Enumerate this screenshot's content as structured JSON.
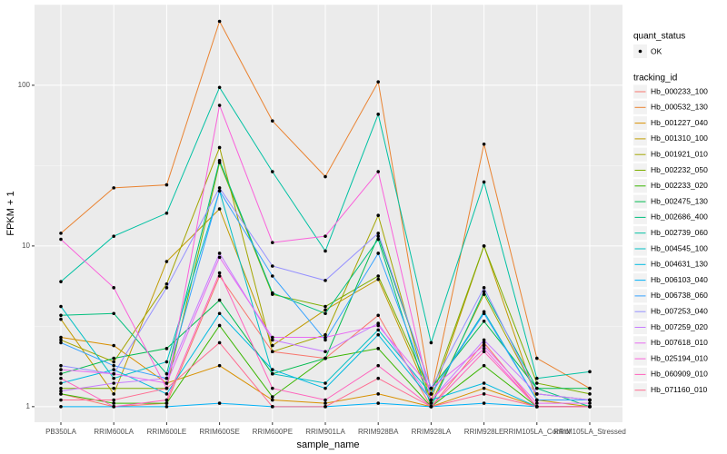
{
  "chart_data": {
    "type": "line",
    "log_scale": true,
    "grid": true,
    "x_label": "sample_name",
    "y_label": "FPKM + 1",
    "legend_shape_title": "quant_status",
    "legend_shape_label": "OK",
    "legend_title": "tracking_id",
    "point_color": "#000000",
    "categories": [
      "PB350LA",
      "RRIM600LA",
      "RRIM600LE",
      "RRIM600SE",
      "RRIM600PE",
      "RRIM901LA",
      "RRIM928BA",
      "RRIM928LA",
      "RRIM928LE",
      "RRIM105LA_Control",
      "RRIM105LA_Stressed"
    ],
    "ylim": [
      0.8,
      318
    ],
    "yticks": [
      1,
      10,
      100
    ],
    "series": [
      {
        "name": "Hb_000233_100",
        "color": "#F8766D",
        "values": [
          1.2,
          1.0,
          1.05,
          6.5,
          2.2,
          2.0,
          3.7,
          1.0,
          2.5,
          1.0,
          1.0
        ]
      },
      {
        "name": "Hb_000532_130",
        "color": "#EA8331",
        "values": [
          12,
          23,
          24,
          250,
          60,
          27,
          105,
          1.2,
          43,
          2.0,
          1.3
        ]
      },
      {
        "name": "Hb_001227_040",
        "color": "#D89000",
        "values": [
          2.7,
          2.4,
          1.4,
          1.8,
          1.1,
          1.05,
          1.2,
          1.0,
          1.3,
          1.0,
          1.0
        ]
      },
      {
        "name": "Hb_001310_100",
        "color": "#C09B00",
        "values": [
          3.5,
          1.2,
          8,
          17,
          2.4,
          4,
          6.2,
          1.1,
          10,
          1.1,
          1.0
        ]
      },
      {
        "name": "Hb_001921_010",
        "color": "#A3A500",
        "values": [
          2.6,
          1.9,
          5.8,
          41,
          2.2,
          2.8,
          15.5,
          1.05,
          5,
          1.2,
          1.1
        ]
      },
      {
        "name": "Hb_002232_050",
        "color": "#7CAE00",
        "values": [
          1.3,
          1.3,
          1.3,
          33,
          5,
          4.2,
          6.5,
          1.2,
          10,
          1.4,
          1.2
        ]
      },
      {
        "name": "Hb_002233_020",
        "color": "#39B600",
        "values": [
          1.2,
          1.05,
          1.05,
          3.2,
          1.15,
          2,
          2.3,
          1.0,
          1.8,
          1.0,
          1.0
        ]
      },
      {
        "name": "Hb_002475_130",
        "color": "#00BB4E",
        "values": [
          1.6,
          2.0,
          2.3,
          4.6,
          1.6,
          2.0,
          11.5,
          1.3,
          3.4,
          1.3,
          1.3
        ]
      },
      {
        "name": "Hb_002686_400",
        "color": "#00BF7D",
        "values": [
          3.7,
          3.8,
          1.6,
          34,
          5.1,
          3.8,
          11,
          1.0,
          5.2,
          1.3,
          1.0
        ]
      },
      {
        "name": "Hb_002739_060",
        "color": "#00C1A3",
        "values": [
          6,
          11.5,
          16,
          97,
          29,
          9.3,
          66,
          2.5,
          25,
          1.5,
          1.65
        ]
      },
      {
        "name": "Hb_004545_100",
        "color": "#00BFC4",
        "values": [
          4.2,
          1.5,
          1.9,
          22,
          1.6,
          1.4,
          3.0,
          1.2,
          3.9,
          1.1,
          1.1
        ]
      },
      {
        "name": "Hb_004631_130",
        "color": "#00BAE0",
        "values": [
          1.4,
          1.7,
          1.2,
          3.8,
          1.7,
          1.3,
          2.8,
          1.1,
          1.4,
          1.0,
          1.0
        ]
      },
      {
        "name": "Hb_006103_040",
        "color": "#00B0F6",
        "values": [
          1.0,
          1.0,
          1.0,
          1.05,
          1.0,
          1.0,
          1.05,
          1.0,
          1.05,
          1.0,
          1.0
        ]
      },
      {
        "name": "Hb_006738_060",
        "color": "#35A2FF",
        "values": [
          2.5,
          1.8,
          1.5,
          22,
          6.5,
          2.6,
          9,
          1.2,
          3.8,
          1.1,
          1.1
        ]
      },
      {
        "name": "Hb_007253_040",
        "color": "#9590FF",
        "values": [
          1.8,
          1.6,
          5.5,
          23,
          7.5,
          6.1,
          12,
          1.3,
          5.5,
          1.2,
          1.1
        ]
      },
      {
        "name": "Hb_007259_020",
        "color": "#C77CFF",
        "values": [
          1.25,
          1.4,
          1.5,
          9,
          2.6,
          2.2,
          3.3,
          1.1,
          2.6,
          1.2,
          1.1
        ]
      },
      {
        "name": "Hb_007618_010",
        "color": "#E76BF3",
        "values": [
          1.7,
          1.6,
          1.4,
          8.5,
          2.7,
          2.7,
          3.2,
          1.3,
          2.4,
          1.05,
          1.05
        ]
      },
      {
        "name": "Hb_025194_010",
        "color": "#FA62DB",
        "values": [
          11,
          5.5,
          1.3,
          75,
          10.5,
          11.5,
          29,
          1.1,
          2.3,
          1.0,
          1.0
        ]
      },
      {
        "name": "Hb_060909_010",
        "color": "#FF62BC",
        "values": [
          1.5,
          1.0,
          1.1,
          6.8,
          1.3,
          1.1,
          1.8,
          1.0,
          2.2,
          1.0,
          1.0
        ]
      },
      {
        "name": "Hb_071160_010",
        "color": "#FF6C91",
        "values": [
          1.1,
          1.1,
          1.3,
          2.5,
          1.0,
          1.0,
          1.5,
          1.0,
          1.2,
          1.0,
          1.0
        ]
      }
    ]
  }
}
